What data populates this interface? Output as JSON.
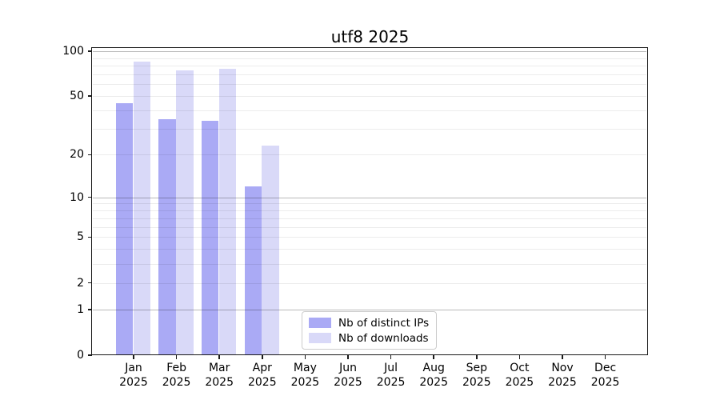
{
  "chart_data": {
    "type": "bar",
    "title": "utf8 2025",
    "x": {
      "categories": [
        "Jan",
        "Feb",
        "Mar",
        "Apr",
        "May",
        "Jun",
        "Jul",
        "Aug",
        "Sep",
        "Oct",
        "Nov",
        "Dec"
      ],
      "year": "2025"
    },
    "series": [
      {
        "name": "Nb of distinct IPs",
        "color": "#aaaaf5",
        "values": [
          45,
          35,
          34,
          12,
          0,
          0,
          0,
          0,
          0,
          0,
          0,
          0
        ]
      },
      {
        "name": "Nb of downloads",
        "color": "#d9d9f8",
        "values": [
          85,
          74,
          76,
          23,
          0,
          0,
          0,
          0,
          0,
          0,
          0,
          0
        ]
      }
    ],
    "y_axis": {
      "scale": "log1p",
      "tick_labels": [
        "100",
        "50",
        "20",
        "10",
        "5",
        "2",
        "1",
        "0"
      ],
      "tick_values": [
        100,
        50,
        20,
        10,
        5,
        2,
        1,
        0
      ],
      "min": 0,
      "max": 105
    },
    "grid": {
      "major_values": [
        1,
        10,
        100
      ],
      "minor_values": [
        2,
        3,
        4,
        5,
        6,
        7,
        8,
        9,
        20,
        30,
        40,
        50,
        60,
        70,
        80,
        90
      ]
    },
    "legend_position": "bottom-center"
  },
  "colors": {
    "grid_major": "rgba(0,0,0,0.27)",
    "grid_minor": "rgba(0,0,0,0.08)",
    "axis": "#1a1a1a",
    "legend_border": "#cccccc"
  }
}
